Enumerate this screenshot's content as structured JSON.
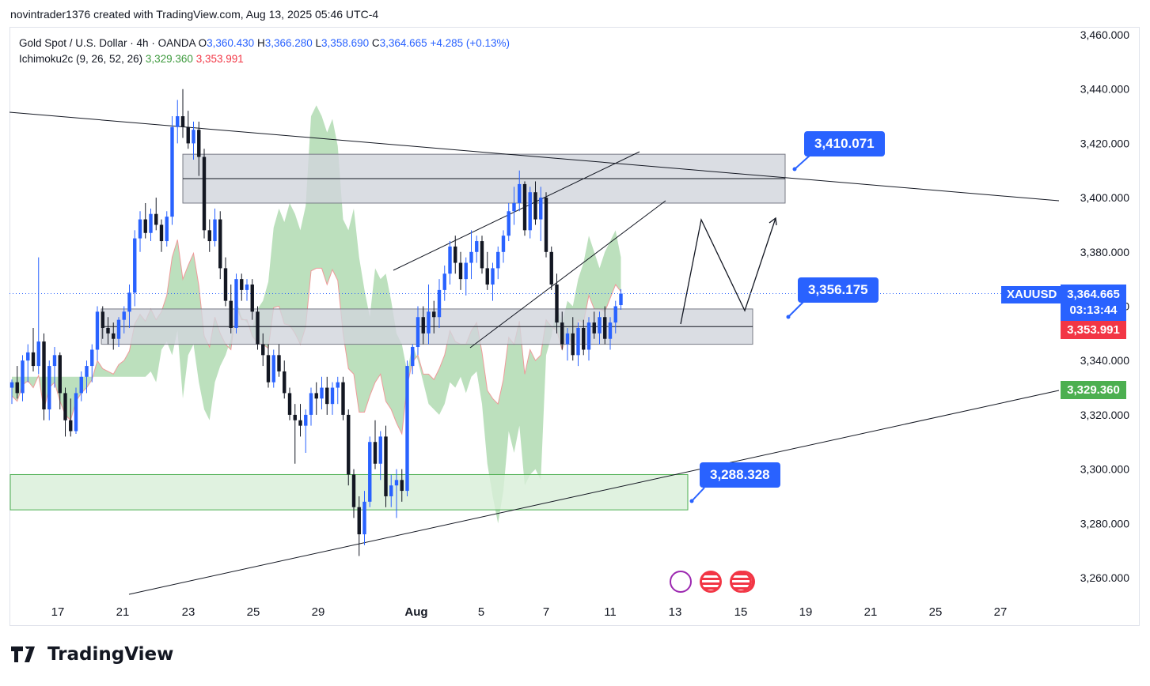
{
  "header": {
    "attribution": "novintrader1376 created with TradingView.com, Aug 13, 2025 05:46 UTC-4"
  },
  "legend": {
    "symbol_line_prefix": "Gold Spot / U.S. Dollar · 4h · OANDA",
    "o_label": "O",
    "o_value": "3,360.430",
    "h_label": "H",
    "h_value": "3,366.280",
    "l_label": "L",
    "l_value": "3,358.690",
    "c_label": "C",
    "c_value": "3,364.665",
    "change": "+4.285 (+0.13%)",
    "indicator_name": "Ichimoku2c (9, 26, 52, 26)",
    "indicator_val1": "3,329.360",
    "indicator_val2": "3,353.991"
  },
  "price_axis": {
    "labels": [
      "3,460.000",
      "3,440.000",
      "3,420.000",
      "3,400.000",
      "3,380.000",
      "3,360.000",
      "3,340.000",
      "3,320.000",
      "3,300.000",
      "3,280.000",
      "3,260.000"
    ],
    "values": [
      3460,
      3440,
      3420,
      3400,
      3380,
      3360,
      3340,
      3320,
      3300,
      3280,
      3260
    ],
    "tag_symbol": "XAUUSD",
    "tag_price": "3,364.665",
    "tag_timer": "03:13:44",
    "tag_red": "3,353.991",
    "tag_green": "3,329.360"
  },
  "time_axis": {
    "labels": [
      "17",
      "21",
      "23",
      "25",
      "29",
      "Aug",
      "5",
      "7",
      "11",
      "13",
      "15",
      "19",
      "21",
      "25",
      "27"
    ],
    "bold": [
      "Aug"
    ]
  },
  "callouts": {
    "upper": "3,410.071",
    "middle": "3,356.175",
    "lower": "3,288.328"
  },
  "colors": {
    "bull": "#2962ff",
    "bear": "#131722",
    "cloud_green": "#a5d6a7",
    "cloud_red": "#ef9a9a",
    "zone_gray": "#d1d4dc",
    "zone_green": "#d8efd8",
    "callout_blue": "#2962ff",
    "tag_red": "#f23645",
    "tag_green": "#4caf50"
  },
  "footer": {
    "brand": "TradingView"
  },
  "chart_data": {
    "type": "candlestick",
    "symbol": "XAUUSD",
    "timeframe": "4h",
    "ylim": [
      3252,
      3462
    ],
    "ohlc": [
      [
        3330,
        3333,
        3324,
        3332
      ],
      [
        3332,
        3338,
        3326,
        3328
      ],
      [
        3328,
        3342,
        3325,
        3340
      ],
      [
        3340,
        3346,
        3332,
        3343
      ],
      [
        3343,
        3352,
        3336,
        3338
      ],
      [
        3338,
        3378,
        3335,
        3347
      ],
      [
        3347,
        3350,
        3318,
        3322
      ],
      [
        3322,
        3340,
        3318,
        3338
      ],
      [
        3338,
        3345,
        3330,
        3342
      ],
      [
        3342,
        3343,
        3322,
        3328
      ],
      [
        3328,
        3330,
        3312,
        3318
      ],
      [
        3318,
        3326,
        3312,
        3314
      ],
      [
        3314,
        3330,
        3313,
        3328
      ],
      [
        3328,
        3336,
        3325,
        3334
      ],
      [
        3334,
        3340,
        3328,
        3338
      ],
      [
        3338,
        3346,
        3332,
        3344
      ],
      [
        3344,
        3360,
        3340,
        3358
      ],
      [
        3358,
        3360,
        3348,
        3352
      ],
      [
        3352,
        3356,
        3346,
        3350
      ],
      [
        3350,
        3354,
        3344,
        3348
      ],
      [
        3348,
        3356,
        3345,
        3355
      ],
      [
        3355,
        3360,
        3350,
        3358
      ],
      [
        3358,
        3368,
        3352,
        3365
      ],
      [
        3365,
        3388,
        3360,
        3385
      ],
      [
        3385,
        3395,
        3380,
        3392
      ],
      [
        3392,
        3398,
        3385,
        3387
      ],
      [
        3387,
        3396,
        3384,
        3394
      ],
      [
        3394,
        3400,
        3388,
        3390
      ],
      [
        3390,
        3392,
        3380,
        3384
      ],
      [
        3384,
        3395,
        3382,
        3393
      ],
      [
        3393,
        3430,
        3390,
        3426
      ],
      [
        3426,
        3436,
        3420,
        3430
      ],
      [
        3430,
        3440,
        3422,
        3426
      ],
      [
        3426,
        3432,
        3418,
        3420
      ],
      [
        3420,
        3428,
        3414,
        3425
      ],
      [
        3425,
        3428,
        3408,
        3415
      ],
      [
        3415,
        3418,
        3385,
        3388
      ],
      [
        3388,
        3392,
        3380,
        3384
      ],
      [
        3384,
        3396,
        3382,
        3392
      ],
      [
        3392,
        3395,
        3370,
        3374
      ],
      [
        3374,
        3378,
        3360,
        3362
      ],
      [
        3362,
        3368,
        3350,
        3352
      ],
      [
        3352,
        3372,
        3350,
        3370
      ],
      [
        3370,
        3372,
        3362,
        3366
      ],
      [
        3366,
        3370,
        3362,
        3368
      ],
      [
        3368,
        3370,
        3355,
        3358
      ],
      [
        3358,
        3360,
        3344,
        3346
      ],
      [
        3346,
        3350,
        3338,
        3342
      ],
      [
        3342,
        3346,
        3330,
        3332
      ],
      [
        3332,
        3344,
        3330,
        3342
      ],
      [
        3342,
        3346,
        3334,
        3336
      ],
      [
        3336,
        3340,
        3326,
        3328
      ],
      [
        3328,
        3330,
        3318,
        3320
      ],
      [
        3320,
        3324,
        3302,
        3318
      ],
      [
        3318,
        3324,
        3312,
        3316
      ],
      [
        3316,
        3322,
        3306,
        3320
      ],
      [
        3320,
        3330,
        3316,
        3328
      ],
      [
        3328,
        3332,
        3320,
        3326
      ],
      [
        3326,
        3334,
        3322,
        3330
      ],
      [
        3330,
        3334,
        3320,
        3324
      ],
      [
        3324,
        3332,
        3320,
        3330
      ],
      [
        3330,
        3334,
        3324,
        3332
      ],
      [
        3332,
        3334,
        3318,
        3320
      ],
      [
        3320,
        3322,
        3294,
        3298
      ],
      [
        3298,
        3300,
        3282,
        3286
      ],
      [
        3286,
        3290,
        3268,
        3276
      ],
      [
        3276,
        3292,
        3272,
        3288
      ],
      [
        3288,
        3312,
        3286,
        3310
      ],
      [
        3310,
        3318,
        3300,
        3302
      ],
      [
        3302,
        3314,
        3296,
        3312
      ],
      [
        3312,
        3316,
        3286,
        3290
      ],
      [
        3290,
        3298,
        3286,
        3294
      ],
      [
        3294,
        3300,
        3282,
        3296
      ],
      [
        3296,
        3300,
        3288,
        3292
      ],
      [
        3292,
        3340,
        3290,
        3338
      ],
      [
        3338,
        3346,
        3335,
        3345
      ],
      [
        3345,
        3360,
        3342,
        3356
      ],
      [
        3356,
        3360,
        3346,
        3350
      ],
      [
        3350,
        3368,
        3346,
        3358
      ],
      [
        3358,
        3362,
        3350,
        3356
      ],
      [
        3356,
        3370,
        3352,
        3366
      ],
      [
        3366,
        3375,
        3362,
        3372
      ],
      [
        3372,
        3384,
        3368,
        3382
      ],
      [
        3382,
        3386,
        3372,
        3376
      ],
      [
        3376,
        3380,
        3366,
        3370
      ],
      [
        3370,
        3378,
        3364,
        3376
      ],
      [
        3376,
        3388,
        3370,
        3380
      ],
      [
        3380,
        3386,
        3376,
        3384
      ],
      [
        3384,
        3386,
        3372,
        3374
      ],
      [
        3374,
        3380,
        3366,
        3368
      ],
      [
        3368,
        3376,
        3362,
        3374
      ],
      [
        3374,
        3382,
        3370,
        3380
      ],
      [
        3380,
        3388,
        3376,
        3386
      ],
      [
        3386,
        3398,
        3384,
        3395
      ],
      [
        3395,
        3404,
        3390,
        3398
      ],
      [
        3398,
        3410,
        3395,
        3405
      ],
      [
        3405,
        3406,
        3386,
        3388
      ],
      [
        3388,
        3404,
        3385,
        3402
      ],
      [
        3402,
        3406,
        3390,
        3392
      ],
      [
        3392,
        3404,
        3384,
        3400
      ],
      [
        3400,
        3402,
        3378,
        3380
      ],
      [
        3380,
        3382,
        3366,
        3368
      ],
      [
        3368,
        3372,
        3350,
        3354
      ],
      [
        3354,
        3358,
        3344,
        3346
      ],
      [
        3346,
        3352,
        3340,
        3350
      ],
      [
        3350,
        3356,
        3340,
        3342
      ],
      [
        3342,
        3354,
        3338,
        3352
      ],
      [
        3352,
        3355,
        3342,
        3344
      ],
      [
        3344,
        3356,
        3340,
        3354
      ],
      [
        3354,
        3358,
        3348,
        3350
      ],
      [
        3350,
        3358,
        3346,
        3356
      ],
      [
        3356,
        3360,
        3346,
        3348
      ],
      [
        3348,
        3356,
        3344,
        3354
      ],
      [
        3354,
        3362,
        3350,
        3360
      ],
      [
        3360.43,
        3366.28,
        3358.69,
        3364.665
      ]
    ],
    "zones": [
      {
        "kind": "resistance",
        "top": 3416,
        "bottom": 3398
      },
      {
        "kind": "support",
        "top": 3359,
        "bottom": 3346
      },
      {
        "kind": "demand",
        "top": 3298,
        "bottom": 3285
      }
    ],
    "levels": [
      3410.071,
      3356.175,
      3288.328
    ],
    "last_price": 3364.665,
    "ichimoku": {
      "params": [
        9,
        26,
        52,
        26
      ],
      "span_a_last": 3329.36,
      "span_b_last": 3353.991
    }
  }
}
